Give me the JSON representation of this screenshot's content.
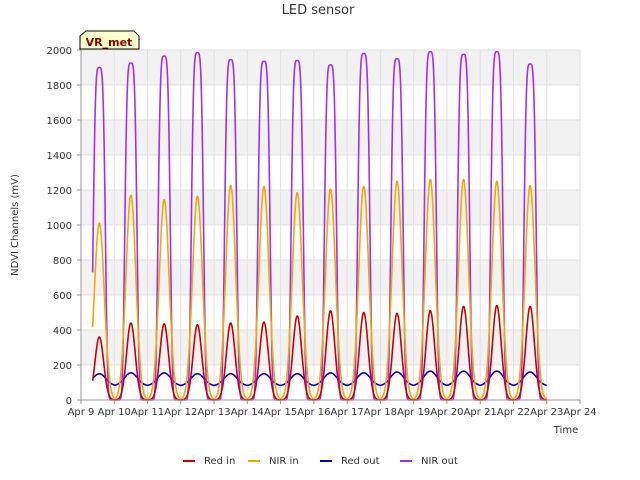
{
  "chart_data": {
    "type": "line",
    "title": "LED sensor",
    "xlabel": "Time",
    "ylabel": "NDVI Channels (mV)",
    "ylim": [
      0,
      2000
    ],
    "yticks": [
      0,
      200,
      400,
      600,
      800,
      1000,
      1200,
      1400,
      1600,
      1800,
      2000
    ],
    "xlim": [
      0,
      15
    ],
    "xticks": [
      {
        "value": 0,
        "label": "Apr 9"
      },
      {
        "value": 1,
        "label": "Apr 10"
      },
      {
        "value": 2,
        "label": "Apr 11"
      },
      {
        "value": 3,
        "label": "Apr 12"
      },
      {
        "value": 4,
        "label": "Apr 13"
      },
      {
        "value": 5,
        "label": "Apr 14"
      },
      {
        "value": 6,
        "label": "Apr 15"
      },
      {
        "value": 7,
        "label": "Apr 16"
      },
      {
        "value": 8,
        "label": "Apr 17"
      },
      {
        "value": 9,
        "label": "Apr 18"
      },
      {
        "value": 10,
        "label": "Apr 19"
      },
      {
        "value": 11,
        "label": "Apr 20"
      },
      {
        "value": 12,
        "label": "Apr 21"
      },
      {
        "value": 13,
        "label": "Apr 22"
      },
      {
        "value": 14,
        "label": "Apr 23"
      },
      {
        "value": 15,
        "label": "Apr 24"
      }
    ],
    "x_unit": "days since Apr 9",
    "annotation": "VR_met",
    "legend_position": "bottom",
    "series": [
      {
        "name": "Red in",
        "color": "#cc0000",
        "peaks": [
          360,
          440,
          435,
          430,
          440,
          445,
          480,
          510,
          500,
          495,
          510,
          535,
          540,
          535
        ],
        "baseline": 0
      },
      {
        "name": "NIR in",
        "color": "#f2a900",
        "peaks": [
          1010,
          1170,
          1145,
          1165,
          1225,
          1220,
          1185,
          1205,
          1220,
          1250,
          1260,
          1260,
          1250,
          1225
        ],
        "baseline": 0
      },
      {
        "name": "Red out",
        "color": "#0000cc",
        "peaks": [
          150,
          155,
          155,
          150,
          150,
          150,
          150,
          155,
          155,
          160,
          165,
          165,
          165,
          160
        ],
        "baseline": 80
      },
      {
        "name": "NIR out",
        "color": "#9b30ff",
        "peaks": [
          1900,
          1925,
          1965,
          1985,
          1945,
          1935,
          1940,
          1915,
          1980,
          1950,
          1990,
          1975,
          1990,
          1920
        ],
        "baseline": 0
      }
    ],
    "day_centers": [
      0.55,
      1.5,
      2.5,
      3.5,
      4.5,
      5.5,
      6.5,
      7.5,
      8.5,
      9.5,
      10.5,
      11.5,
      12.5,
      13.5
    ],
    "data_end": 14.0
  }
}
